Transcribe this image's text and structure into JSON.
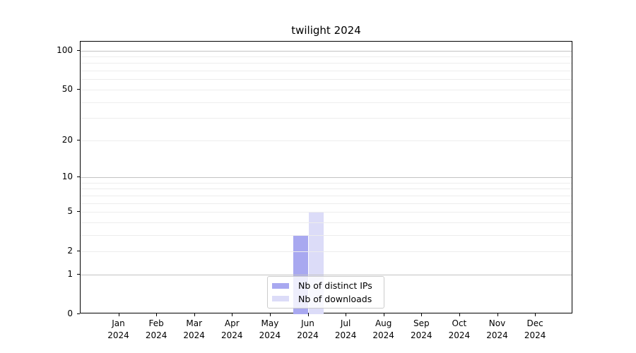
{
  "chart_data": {
    "type": "bar",
    "title": "twilight 2024",
    "categories": [
      [
        "Jan",
        "2024"
      ],
      [
        "Feb",
        "2024"
      ],
      [
        "Mar",
        "2024"
      ],
      [
        "Apr",
        "2024"
      ],
      [
        "May",
        "2024"
      ],
      [
        "Jun",
        "2024"
      ],
      [
        "Jul",
        "2024"
      ],
      [
        "Aug",
        "2024"
      ],
      [
        "Sep",
        "2024"
      ],
      [
        "Oct",
        "2024"
      ],
      [
        "Nov",
        "2024"
      ],
      [
        "Dec",
        "2024"
      ]
    ],
    "series": [
      {
        "name": "Nb of distinct IPs",
        "color": "#a8a8f0",
        "values": [
          0,
          0,
          0,
          0,
          0,
          3,
          0,
          0,
          0,
          0,
          0,
          0
        ]
      },
      {
        "name": "Nb of downloads",
        "color": "#dcdcf8",
        "values": [
          0,
          0,
          0,
          0,
          0,
          5,
          0,
          0,
          0,
          0,
          0,
          0
        ]
      }
    ],
    "xlabel": "",
    "ylabel": "",
    "yscale": "log1p",
    "ylim": [
      0,
      117
    ],
    "yticks": [
      100,
      50,
      20,
      10,
      5,
      2,
      1,
      0
    ],
    "major_grid_values": [
      1,
      10,
      100
    ],
    "minor_grid_values": [
      2,
      3,
      4,
      5,
      6,
      7,
      8,
      9,
      20,
      30,
      40,
      50,
      60,
      70,
      80,
      90
    ],
    "grid": "both",
    "legend_position": "lower center",
    "colors": {
      "major_grid": "#c3c3c3",
      "minor_grid": "#ededed",
      "axis": "#000000",
      "background": "#ffffff",
      "text": "#000000"
    }
  }
}
